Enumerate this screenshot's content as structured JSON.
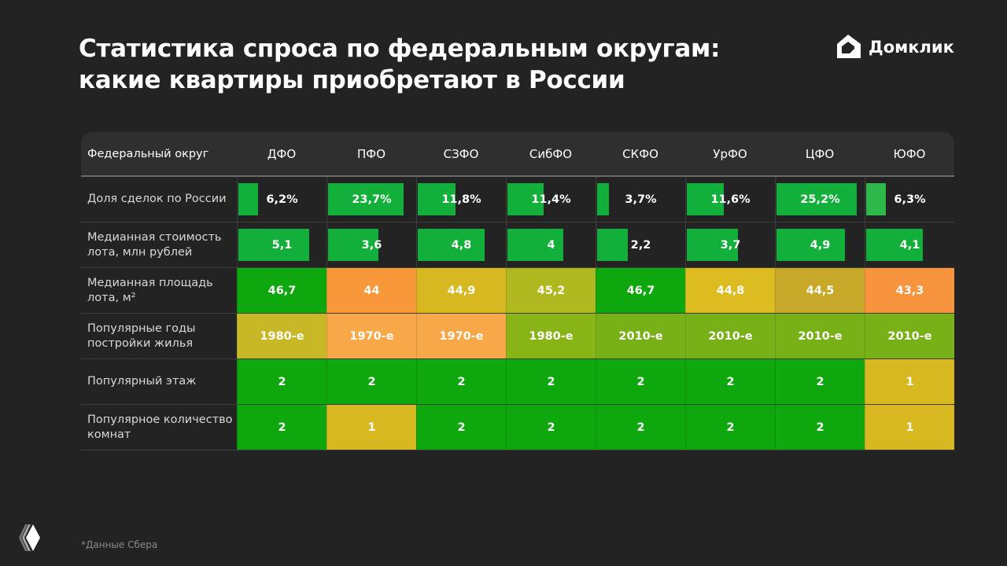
{
  "title_line1": "Статистика спроса по федеральным округам:",
  "title_line2": "какие квартиры приобретают в России",
  "logo": "Домклик",
  "footnote": "*Данные Сбера",
  "chart_data": {
    "type": "table",
    "header_label": "Федеральный округ",
    "columns": [
      "ДФО",
      "ПФО",
      "СЗФО",
      "СибФО",
      "СКФО",
      "УрФО",
      "ЦФО",
      "ЮФО"
    ],
    "rows": [
      {
        "label": "Доля сделок по России",
        "kind": "bar",
        "values": [
          6.2,
          23.7,
          11.8,
          11.4,
          3.7,
          11.6,
          25.2,
          6.3
        ],
        "display": [
          "6,2%",
          "23,7%",
          "11,8%",
          "11,4%",
          "3,7%",
          "11,6%",
          "25,2%",
          "6,3%"
        ],
        "bar_max": 28
      },
      {
        "label": "Медианная стоимость лота, млн рублей",
        "kind": "bar",
        "values": [
          5.1,
          3.6,
          4.8,
          4,
          2.2,
          3.7,
          4.9,
          4.1
        ],
        "display": [
          "5,1",
          "3,6",
          "4,8",
          "4",
          "2,2",
          "3,7",
          "4,9",
          "4,1"
        ],
        "bar_max": 6.4
      },
      {
        "label": "Медианная площадь лота, м²",
        "kind": "heat",
        "display": [
          "46,7",
          "44",
          "44,9",
          "45,2",
          "46,7",
          "44,8",
          "44,5",
          "43,3"
        ],
        "colors": [
          "#0ea80e",
          "#f8983a",
          "#d8b820",
          "#b0b820",
          "#0ea80e",
          "#dcbc20",
          "#c8a828",
          "#f8943e"
        ]
      },
      {
        "label": "Популярные годы постройки жилья",
        "kind": "heat",
        "display": [
          "1980-е",
          "1970-е",
          "1970-е",
          "1980-е",
          "2010-е",
          "2010-е",
          "2010-е",
          "2010-е"
        ],
        "colors": [
          "#c8b828",
          "#f8a848",
          "#f8a848",
          "#88b418",
          "#78b018",
          "#78b018",
          "#78b018",
          "#78b018"
        ]
      },
      {
        "label": "Популярный этаж",
        "kind": "heat",
        "display": [
          "2",
          "2",
          "2",
          "2",
          "2",
          "2",
          "2",
          "1"
        ],
        "colors": [
          "#0ea80e",
          "#0ea80e",
          "#0ea80e",
          "#0ea80e",
          "#0ea80e",
          "#0ea80e",
          "#0ea80e",
          "#d8b820"
        ]
      },
      {
        "label": "Популярное количество комнат",
        "kind": "heat",
        "display": [
          "2",
          "1",
          "2",
          "2",
          "2",
          "2",
          "2",
          "1"
        ],
        "colors": [
          "#0ea80e",
          "#d8b820",
          "#0ea80e",
          "#0ea80e",
          "#0ea80e",
          "#0ea80e",
          "#0ea80e",
          "#d8b820"
        ]
      }
    ]
  }
}
